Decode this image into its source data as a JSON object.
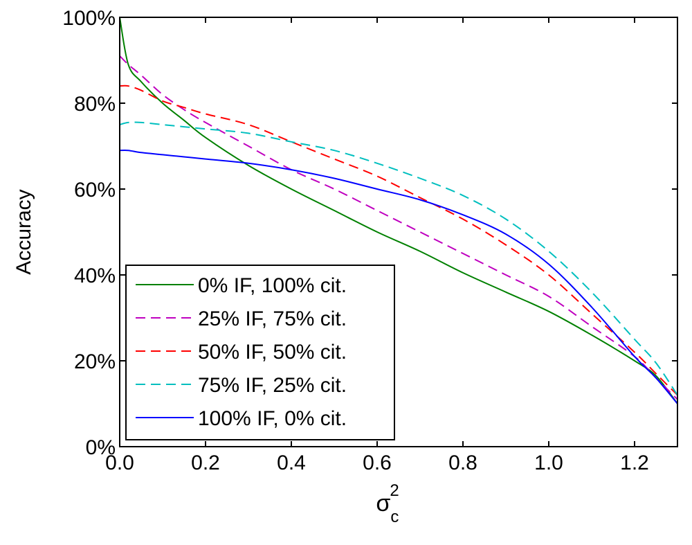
{
  "chart_data": {
    "type": "line",
    "title": "",
    "xlabel": "σ",
    "xlabel_sub": "c",
    "xlabel_sup": "2",
    "ylabel": "Accuracy",
    "xlim": [
      0,
      1.3
    ],
    "ylim": [
      0,
      100
    ],
    "x_ticks": [
      0,
      0.2,
      0.4,
      0.6,
      0.8,
      1.0,
      1.2
    ],
    "x_tick_labels": [
      "0.0",
      "0.2",
      "0.4",
      "0.6",
      "0.8",
      "1.0",
      "1.2"
    ],
    "y_ticks": [
      0,
      20,
      40,
      60,
      80,
      100
    ],
    "y_tick_labels": [
      "0%",
      "20%",
      "40%",
      "60%",
      "80%",
      "100%"
    ],
    "grid": false,
    "legend_position": "bottom-left",
    "x": [
      0.0,
      0.02,
      0.05,
      0.1,
      0.15,
      0.2,
      0.3,
      0.4,
      0.5,
      0.6,
      0.7,
      0.8,
      0.9,
      1.0,
      1.1,
      1.2,
      1.25,
      1.3
    ],
    "series": [
      {
        "name": "0% IF, 100% cit.",
        "color": "#008000",
        "dash": "solid",
        "values": [
          100,
          89,
          85,
          80,
          76,
          72,
          65.5,
          60,
          55,
          50,
          45.5,
          40.5,
          36,
          31.5,
          26,
          20,
          16.5,
          10
        ]
      },
      {
        "name": "25% IF, 75% cit.",
        "color": "#bf00bf",
        "dash": "dashed",
        "values": [
          91,
          89,
          86.5,
          82,
          78.5,
          75.5,
          70,
          64.5,
          60,
          55,
          50,
          45,
          40,
          35,
          28,
          21,
          16,
          11
        ]
      },
      {
        "name": "50% IF, 50% cit.",
        "color": "#ff0000",
        "dash": "dashed",
        "values": [
          84,
          84,
          83,
          80.5,
          79,
          77.5,
          75,
          71,
          67,
          63,
          58,
          53,
          47,
          40,
          31,
          22,
          17,
          12
        ]
      },
      {
        "name": "75% IF, 25% cit.",
        "color": "#00bfbf",
        "dash": "dashed",
        "values": [
          75,
          75.5,
          75.5,
          75,
          74.5,
          74,
          73,
          71,
          69,
          66,
          62.5,
          58.5,
          53,
          45.5,
          36,
          25,
          19.5,
          12
        ]
      },
      {
        "name": "100% IF, 0% cit.",
        "color": "#0000ff",
        "dash": "solid",
        "values": [
          69,
          69,
          68.5,
          68,
          67.5,
          67,
          66,
          64.5,
          62.5,
          60,
          57.5,
          54,
          49.5,
          42.5,
          32.5,
          21,
          16,
          10
        ]
      }
    ]
  }
}
